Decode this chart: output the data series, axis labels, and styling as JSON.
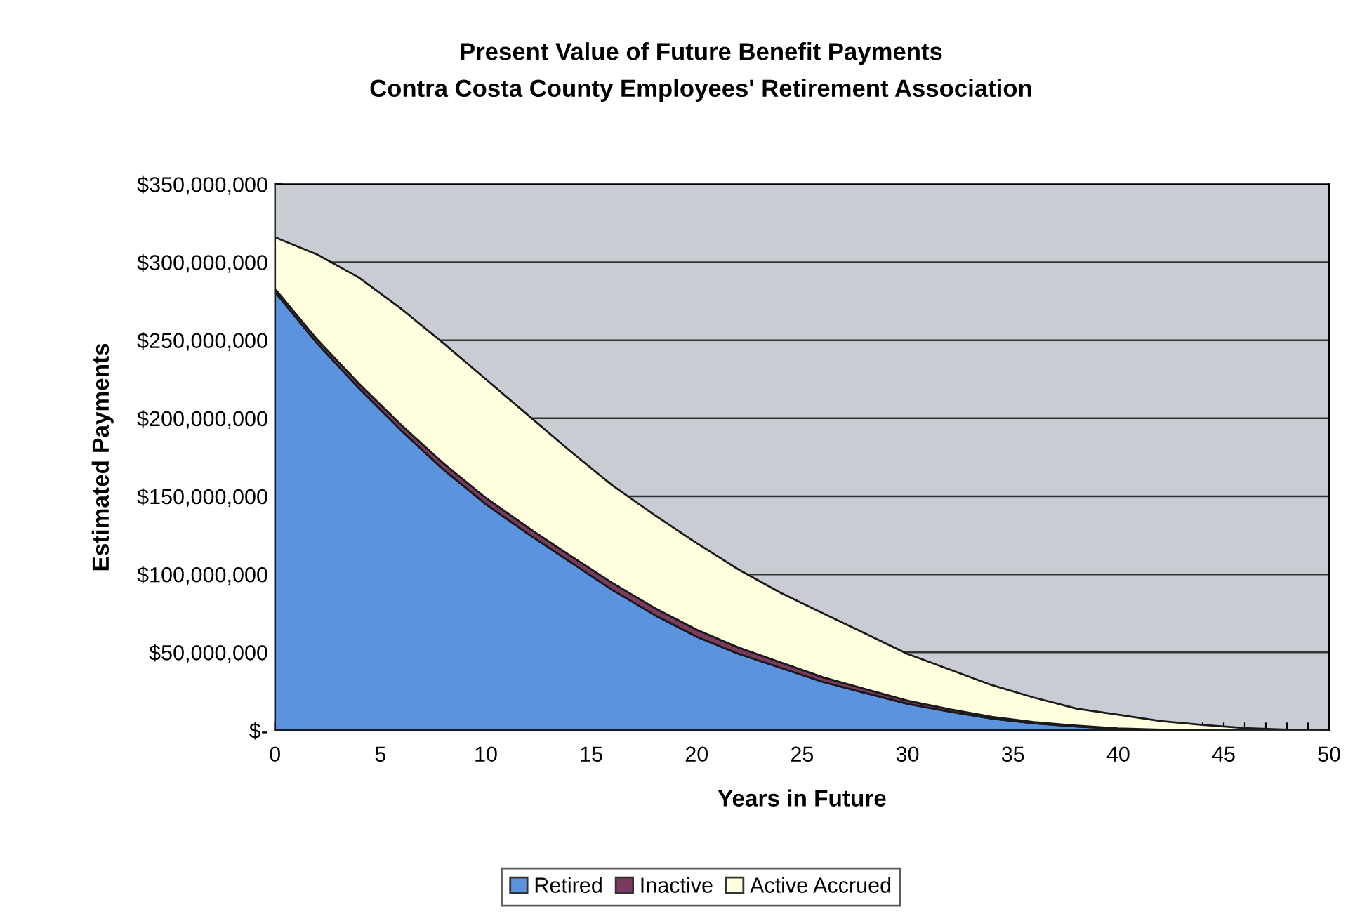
{
  "chart_data": {
    "type": "area",
    "stacked": true,
    "title": "Present Value of Future Benefit Payments",
    "subtitle": "Contra Costa County Employees' Retirement Association",
    "xlabel": "Years in Future",
    "ylabel": "Estimated Payments",
    "x": [
      0,
      2,
      4,
      6,
      8,
      10,
      12,
      14,
      16,
      18,
      20,
      22,
      24,
      26,
      28,
      30,
      32,
      34,
      36,
      38,
      40,
      42,
      44,
      46,
      48,
      50
    ],
    "series": [
      {
        "name": "Retired",
        "color": "#5b93de",
        "values": [
          281000000,
          248000000,
          219000000,
          192000000,
          167000000,
          145000000,
          126000000,
          108000000,
          90000000,
          74000000,
          60000000,
          49000000,
          40000000,
          31000000,
          24000000,
          17000000,
          12000000,
          7500000,
          4500000,
          2500000,
          1000000,
          300000,
          0,
          0,
          0,
          0
        ]
      },
      {
        "name": "Inactive",
        "color": "#7a3b5e",
        "values": [
          2000000,
          2500000,
          3000000,
          3500000,
          4000000,
          4000000,
          4000000,
          4000000,
          4500000,
          4500000,
          4500000,
          4000000,
          3500000,
          3000000,
          2500000,
          2000000,
          1500000,
          1200000,
          800000,
          500000,
          300000,
          200000,
          100000,
          0,
          0,
          0
        ]
      },
      {
        "name": "Active Accrued",
        "color": "#ffffe0",
        "values": [
          33000000,
          54500000,
          68000000,
          74500000,
          77000000,
          76000000,
          72000000,
          67000000,
          62500000,
          59500000,
          55500000,
          50000000,
          44500000,
          41000000,
          35500000,
          30000000,
          25500000,
          20300000,
          15700000,
          11000000,
          8700000,
          5500000,
          3400000,
          1500000,
          500000,
          0
        ]
      }
    ],
    "xlim": [
      0,
      50
    ],
    "xticks": [
      0,
      {
        "value": 1,
        "label": null
      },
      {
        "value": 2,
        "label": null
      },
      {
        "value": 3,
        "label": null
      },
      {
        "value": 4,
        "label": null
      },
      5,
      {
        "value": 6,
        "label": null
      },
      {
        "value": 7,
        "label": null
      },
      {
        "value": 8,
        "label": null
      },
      {
        "value": 9,
        "label": null
      },
      10,
      {
        "value": 11,
        "label": null
      },
      {
        "value": 12,
        "label": null
      },
      {
        "value": 13,
        "label": null
      },
      {
        "value": 14,
        "label": null
      },
      15,
      {
        "value": 16,
        "label": null
      },
      {
        "value": 17,
        "label": null
      },
      {
        "value": 18,
        "label": null
      },
      {
        "value": 19,
        "label": null
      },
      20,
      {
        "value": 21,
        "label": null
      },
      {
        "value": 22,
        "label": null
      },
      {
        "value": 23,
        "label": null
      },
      {
        "value": 24,
        "label": null
      },
      25,
      {
        "value": 26,
        "label": null
      },
      {
        "value": 27,
        "label": null
      },
      {
        "value": 28,
        "label": null
      },
      {
        "value": 29,
        "label": null
      },
      30,
      {
        "value": 31,
        "label": null
      },
      {
        "value": 32,
        "label": null
      },
      {
        "value": 33,
        "label": null
      },
      {
        "value": 34,
        "label": null
      },
      35,
      {
        "value": 36,
        "label": null
      },
      {
        "value": 37,
        "label": null
      },
      {
        "value": 38,
        "label": null
      },
      {
        "value": 39,
        "label": null
      },
      40,
      {
        "value": 41,
        "label": null
      },
      {
        "value": 42,
        "label": null
      },
      {
        "value": 43,
        "label": null
      },
      {
        "value": 44,
        "label": null
      },
      45,
      {
        "value": 46,
        "label": null
      },
      {
        "value": 47,
        "label": null
      },
      {
        "value": 48,
        "label": null
      },
      {
        "value": 49,
        "label": null
      },
      50
    ],
    "ylim": [
      0,
      350000000
    ],
    "yticks": [
      {
        "value": 0,
        "label": "$-"
      },
      {
        "value": 50000000,
        "label": "$50,000,000"
      },
      {
        "value": 100000000,
        "label": "$100,000,000"
      },
      {
        "value": 150000000,
        "label": "$150,000,000"
      },
      {
        "value": 200000000,
        "label": "$200,000,000"
      },
      {
        "value": 250000000,
        "label": "$250,000,000"
      },
      {
        "value": 300000000,
        "label": "$300,000,000"
      },
      {
        "value": 350000000,
        "label": "$350,000,000"
      }
    ],
    "grid": "y",
    "legend": "bottom"
  }
}
